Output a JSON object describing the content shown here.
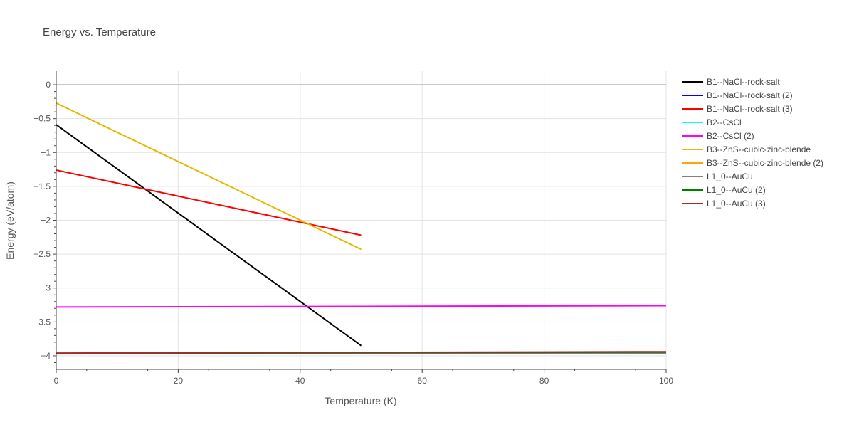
{
  "chart_data": {
    "type": "line",
    "title": "Energy vs. Temperature",
    "xlabel": "Temperature (K)",
    "ylabel": "Energy (eV/atom)",
    "xlim": [
      0,
      100
    ],
    "ylim": [
      -4.2,
      0.2
    ],
    "xticks": [
      0,
      20,
      40,
      60,
      80,
      100
    ],
    "xtick_labels": [
      "0",
      "20",
      "40",
      "60",
      "80",
      "100"
    ],
    "yticks": [
      0,
      -0.5,
      -1,
      -1.5,
      -2,
      -2.5,
      -3,
      -3.5,
      -4
    ],
    "ytick_labels": [
      "0",
      "−0.5",
      "−1",
      "−1.5",
      "−2",
      "−2.5",
      "−3",
      "−3.5",
      "−4"
    ],
    "grid": true,
    "legend_position": "right",
    "series": [
      {
        "name": "B1--NaCl--rock-salt",
        "color": "#000000",
        "x": [
          0,
          50
        ],
        "y": [
          -0.59,
          -3.85
        ]
      },
      {
        "name": "B1--NaCl--rock-salt (2)",
        "color": "#0000ff",
        "x": [],
        "y": []
      },
      {
        "name": "B1--NaCl--rock-salt (3)",
        "color": "#ff0000",
        "x": [
          0,
          50
        ],
        "y": [
          -1.26,
          -2.22
        ]
      },
      {
        "name": "B2--CsCl",
        "color": "#00ffff",
        "x": [],
        "y": []
      },
      {
        "name": "B2--CsCl (2)",
        "color": "#ff00ff",
        "x": [
          0,
          100
        ],
        "y": [
          -3.28,
          -3.26
        ]
      },
      {
        "name": "B3--ZnS--cubic-zinc-blende",
        "color": "#e6b800",
        "x": [
          0,
          50
        ],
        "y": [
          -0.27,
          -2.43
        ]
      },
      {
        "name": "B3--ZnS--cubic-zinc-blende (2)",
        "color": "#ffa500",
        "x": [],
        "y": []
      },
      {
        "name": "L1_0--AuCu",
        "color": "#808080",
        "x": [
          0,
          100
        ],
        "y": [
          -3.97,
          -3.96
        ]
      },
      {
        "name": "L1_0--AuCu (2)",
        "color": "#008000",
        "x": [
          0,
          100
        ],
        "y": [
          -3.965,
          -3.945
        ]
      },
      {
        "name": "L1_0--AuCu (3)",
        "color": "#a52a2a",
        "x": [
          0,
          100
        ],
        "y": [
          -3.96,
          -3.94
        ]
      }
    ]
  }
}
